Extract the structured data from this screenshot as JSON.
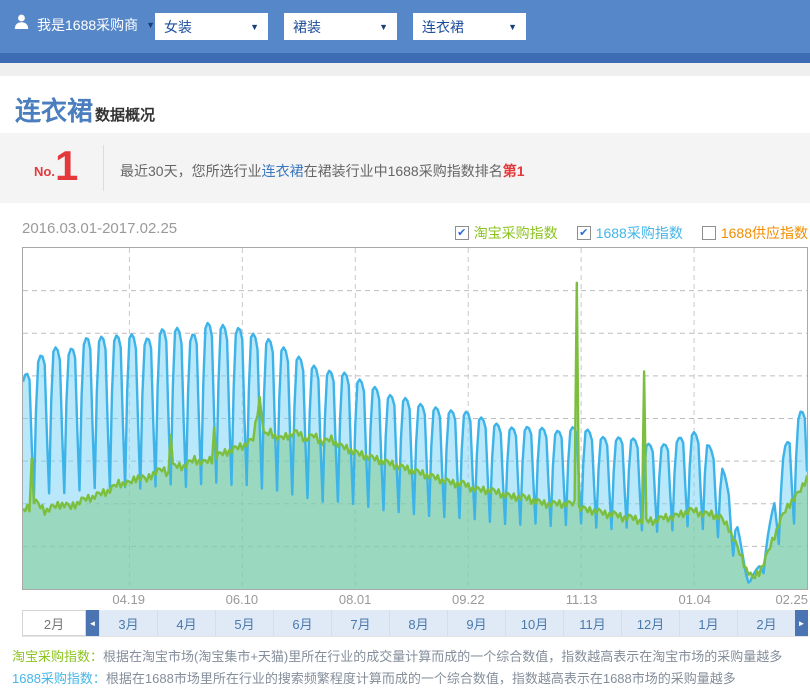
{
  "header": {
    "user_label": "我是1688采购商",
    "dropdowns": [
      "女装",
      "裙装",
      "连衣裙"
    ]
  },
  "title": {
    "main": "连衣裙",
    "suffix": "数据概况"
  },
  "rank_banner": {
    "no_prefix": "No.",
    "rank": "1",
    "text_before": "最近30天，您所选行业",
    "keyword": "连衣裙",
    "text_middle": "在裙装行业中1688采购指数排名",
    "rank_text": "第1"
  },
  "chart_header": {
    "date_range": "2016.03.01-2017.02.25",
    "legend": [
      {
        "label": "淘宝采购指数",
        "color": "#8cc320",
        "checked": true
      },
      {
        "label": "1688采购指数",
        "color": "#45b6e8",
        "checked": true
      },
      {
        "label": "1688供应指数",
        "color": "#f08e00",
        "checked": false
      }
    ]
  },
  "months": {
    "selected": "2月",
    "items": [
      "3月",
      "4月",
      "5月",
      "6月",
      "7月",
      "8月",
      "9月",
      "10月",
      "11月",
      "12月",
      "1月",
      "2月"
    ]
  },
  "footnotes": [
    {
      "label": "淘宝采购指数：",
      "label_color": "#8cc320",
      "text": "根据在淘宝市场(淘宝集市+天猫)里所在行业的成交量计算而成的一个综合数值，指数越高表示在淘宝市场的采购量越多"
    },
    {
      "label": "1688采购指数：",
      "label_color": "#45b6e8",
      "text": "根据在1688市场里所在行业的搜索频繁程度计算而成的一个综合数值，指数越高表示在1688市场的采购量越多"
    }
  ],
  "chart_data": {
    "type": "area",
    "title": "连衣裙数据概况",
    "x_range": [
      "2016.03.01",
      "2017.02.25"
    ],
    "days_total": 361,
    "x_ticks": [
      {
        "day": 49,
        "label": "04.19"
      },
      {
        "day": 101,
        "label": "06.10"
      },
      {
        "day": 153,
        "label": "08.01"
      },
      {
        "day": 205,
        "label": "09.22"
      },
      {
        "day": 257,
        "label": "11.13"
      },
      {
        "day": 309,
        "label": "01.04"
      },
      {
        "day": 361,
        "label": "02.25"
      }
    ],
    "y_axis": {
      "min": 0,
      "max": 100,
      "gridline_step": 12.5,
      "grid": "dashed"
    },
    "legend_position": "top-right",
    "series": [
      {
        "name": "1688采购指数",
        "visible": true,
        "line_color": "#3eb3e8",
        "fill_color": "rgba(125,214,246,0.55)",
        "weekly_dip": [
          0.02,
          0,
          0.01,
          0.05,
          0.35,
          0.6,
          0.22
        ],
        "anchors": [
          [
            0,
            62
          ],
          [
            7,
            68
          ],
          [
            14,
            71
          ],
          [
            21,
            70
          ],
          [
            30,
            74
          ],
          [
            40,
            74
          ],
          [
            49,
            75
          ],
          [
            56,
            73
          ],
          [
            63,
            76
          ],
          [
            70,
            77
          ],
          [
            77,
            74
          ],
          [
            84,
            78
          ],
          [
            90,
            78
          ],
          [
            97,
            76
          ],
          [
            101,
            77
          ],
          [
            108,
            74
          ],
          [
            115,
            73
          ],
          [
            122,
            70
          ],
          [
            130,
            67
          ],
          [
            138,
            64
          ],
          [
            146,
            64
          ],
          [
            153,
            62
          ],
          [
            160,
            60
          ],
          [
            168,
            57
          ],
          [
            176,
            56
          ],
          [
            184,
            54
          ],
          [
            192,
            53
          ],
          [
            200,
            52
          ],
          [
            205,
            52
          ],
          [
            212,
            50
          ],
          [
            220,
            48
          ],
          [
            228,
            47
          ],
          [
            236,
            48
          ],
          [
            244,
            46
          ],
          [
            250,
            47
          ],
          [
            257,
            48
          ],
          [
            264,
            45
          ],
          [
            271,
            44
          ],
          [
            278,
            45
          ],
          [
            285,
            43
          ],
          [
            292,
            42
          ],
          [
            299,
            43
          ],
          [
            306,
            46
          ],
          [
            309,
            46
          ],
          [
            315,
            43
          ],
          [
            322,
            36
          ],
          [
            328,
            22
          ],
          [
            332,
            8
          ],
          [
            335,
            3
          ],
          [
            339,
            7
          ],
          [
            343,
            16
          ],
          [
            347,
            30
          ],
          [
            351,
            42
          ],
          [
            355,
            48
          ],
          [
            358,
            52
          ],
          [
            361,
            53
          ]
        ]
      },
      {
        "name": "淘宝采购指数",
        "visible": true,
        "line_color": "#7cbf3f",
        "fill_color": "rgba(118,200,120,0.45)",
        "weekly_add": [
          0.5,
          -0.5,
          1.0,
          -1.2,
          0.3,
          -0.8,
          0.8
        ],
        "anchors": [
          [
            0,
            23
          ],
          [
            3,
            24
          ],
          [
            4,
            38
          ],
          [
            5,
            26
          ],
          [
            10,
            23
          ],
          [
            14,
            24
          ],
          [
            18,
            25
          ],
          [
            22,
            24
          ],
          [
            27,
            26
          ],
          [
            32,
            27
          ],
          [
            36,
            28
          ],
          [
            40,
            29
          ],
          [
            44,
            31
          ],
          [
            49,
            31
          ],
          [
            53,
            33
          ],
          [
            57,
            32
          ],
          [
            60,
            34
          ],
          [
            64,
            35
          ],
          [
            67,
            34
          ],
          [
            68,
            46
          ],
          [
            69,
            36
          ],
          [
            74,
            36
          ],
          [
            79,
            38
          ],
          [
            83,
            37
          ],
          [
            87,
            38
          ],
          [
            88,
            47
          ],
          [
            89,
            39
          ],
          [
            93,
            40
          ],
          [
            97,
            41
          ],
          [
            101,
            42
          ],
          [
            104,
            43
          ],
          [
            106,
            44
          ],
          [
            109,
            56
          ],
          [
            111,
            45
          ],
          [
            114,
            46
          ],
          [
            118,
            44
          ],
          [
            122,
            45
          ],
          [
            126,
            46
          ],
          [
            130,
            44
          ],
          [
            134,
            45
          ],
          [
            138,
            43
          ],
          [
            142,
            44
          ],
          [
            146,
            42
          ],
          [
            150,
            41
          ],
          [
            153,
            40
          ],
          [
            158,
            39
          ],
          [
            163,
            38
          ],
          [
            168,
            37
          ],
          [
            173,
            36
          ],
          [
            178,
            35
          ],
          [
            183,
            34
          ],
          [
            188,
            33
          ],
          [
            193,
            32
          ],
          [
            198,
            31
          ],
          [
            203,
            31
          ],
          [
            205,
            30
          ],
          [
            210,
            29
          ],
          [
            215,
            29
          ],
          [
            220,
            28
          ],
          [
            225,
            27
          ],
          [
            230,
            27
          ],
          [
            235,
            26
          ],
          [
            240,
            25
          ],
          [
            245,
            25
          ],
          [
            253,
            25
          ],
          [
            254,
            25
          ],
          [
            255,
            91
          ],
          [
            256,
            24
          ],
          [
            260,
            23
          ],
          [
            264,
            23
          ],
          [
            268,
            22
          ],
          [
            272,
            22
          ],
          [
            276,
            21
          ],
          [
            280,
            21
          ],
          [
            284,
            20
          ],
          [
            285,
            20
          ],
          [
            286,
            63
          ],
          [
            287,
            20
          ],
          [
            291,
            20
          ],
          [
            295,
            21
          ],
          [
            299,
            21
          ],
          [
            303,
            22
          ],
          [
            307,
            23
          ],
          [
            309,
            23
          ],
          [
            313,
            22
          ],
          [
            317,
            22
          ],
          [
            321,
            21
          ],
          [
            325,
            18
          ],
          [
            329,
            12
          ],
          [
            333,
            6
          ],
          [
            336,
            3
          ],
          [
            339,
            5
          ],
          [
            342,
            9
          ],
          [
            345,
            14
          ],
          [
            348,
            19
          ],
          [
            351,
            23
          ],
          [
            354,
            26
          ],
          [
            357,
            28
          ],
          [
            359,
            30
          ],
          [
            361,
            33
          ]
        ]
      },
      {
        "name": "1688供应指数",
        "visible": false,
        "line_color": "#f08e00",
        "anchors": []
      }
    ]
  }
}
